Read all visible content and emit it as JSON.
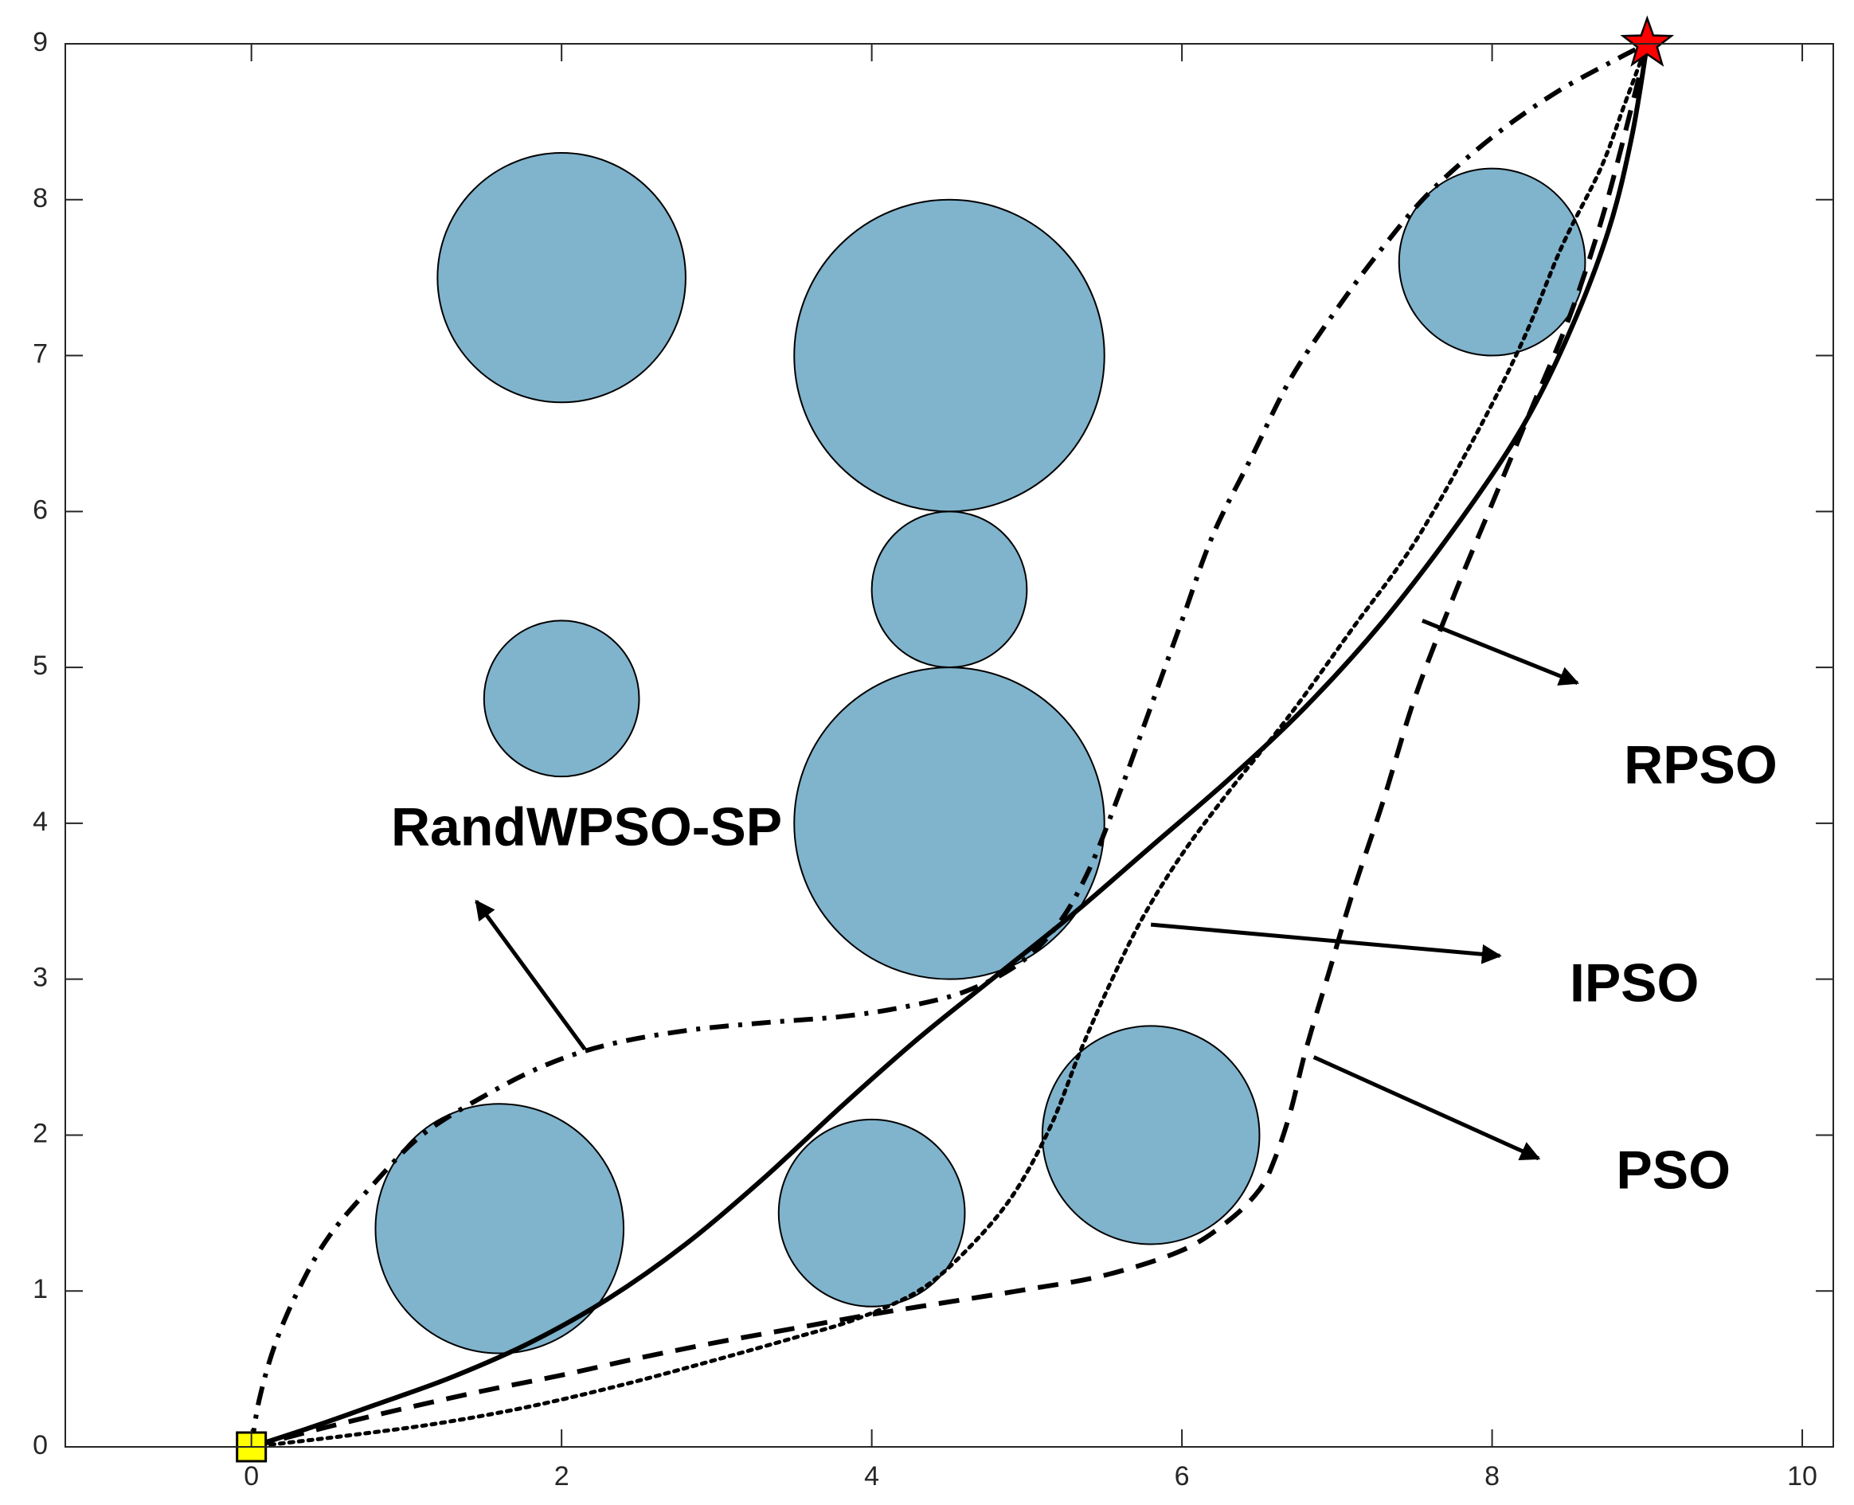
{
  "chart_data": {
    "type": "scatter",
    "title": "",
    "xlabel": "",
    "ylabel": "",
    "xlim": [
      -1.2,
      10.2
    ],
    "ylim": [
      0,
      9
    ],
    "xticks": [
      0,
      2,
      4,
      6,
      8,
      10
    ],
    "yticks": [
      0,
      1,
      2,
      3,
      4,
      5,
      6,
      7,
      8,
      9
    ],
    "grid": false,
    "colors": {
      "obstacle_fill": "#80b3cc",
      "obstacle_edge": "#000000",
      "start_marker": "#ffff00",
      "goal_marker": "#ff0000",
      "path": "#000000"
    },
    "start": {
      "x": 0,
      "y": 0,
      "marker": "square"
    },
    "goal": {
      "x": 9,
      "y": 9,
      "marker": "star"
    },
    "obstacles": [
      {
        "x": 2.0,
        "y": 7.5,
        "r": 0.8
      },
      {
        "x": 4.5,
        "y": 7.0,
        "r": 1.0
      },
      {
        "x": 4.5,
        "y": 5.5,
        "r": 0.5
      },
      {
        "x": 2.0,
        "y": 4.8,
        "r": 0.5
      },
      {
        "x": 4.5,
        "y": 4.0,
        "r": 1.0
      },
      {
        "x": 1.6,
        "y": 1.4,
        "r": 0.8
      },
      {
        "x": 4.0,
        "y": 1.5,
        "r": 0.6
      },
      {
        "x": 5.8,
        "y": 2.0,
        "r": 0.7
      },
      {
        "x": 8.0,
        "y": 7.6,
        "r": 0.6
      }
    ],
    "series": [
      {
        "name": "RandWPSO-SP",
        "style": "dashdot",
        "x": [
          0,
          0.05,
          0.15,
          0.3,
          0.5,
          0.8,
          1.1,
          1.5,
          1.9,
          2.3,
          2.8,
          3.3,
          3.8,
          4.2,
          4.6,
          4.95,
          5.2,
          5.4,
          5.6,
          5.8,
          6.0,
          6.2,
          6.45,
          6.7,
          7.0,
          7.3,
          7.6,
          8.0,
          8.4,
          8.8,
          9.0
        ],
        "y": [
          0,
          0.3,
          0.65,
          1.0,
          1.35,
          1.7,
          2.0,
          2.25,
          2.45,
          2.58,
          2.67,
          2.72,
          2.76,
          2.82,
          2.92,
          3.1,
          3.35,
          3.7,
          4.2,
          4.75,
          5.3,
          5.85,
          6.35,
          6.85,
          7.3,
          7.7,
          8.05,
          8.4,
          8.68,
          8.9,
          9.0
        ]
      },
      {
        "name": "RPSO",
        "style": "solid",
        "x": [
          0,
          0.4,
          0.8,
          1.3,
          1.8,
          2.3,
          2.8,
          3.3,
          3.8,
          4.3,
          4.8,
          5.3,
          5.8,
          6.3,
          6.8,
          7.3,
          7.8,
          8.2,
          8.5,
          8.75,
          8.9,
          9.0
        ],
        "y": [
          0,
          0.13,
          0.27,
          0.45,
          0.67,
          0.95,
          1.3,
          1.72,
          2.18,
          2.62,
          3.02,
          3.42,
          3.85,
          4.28,
          4.75,
          5.3,
          5.95,
          6.55,
          7.15,
          7.8,
          8.4,
          9.0
        ]
      },
      {
        "name": "IPSO",
        "style": "dotted",
        "x": [
          0,
          0.6,
          1.2,
          1.8,
          2.4,
          3.0,
          3.5,
          3.9,
          4.3,
          4.6,
          4.9,
          5.15,
          5.35,
          5.55,
          5.75,
          6.0,
          6.3,
          6.7,
          7.1,
          7.5,
          7.9,
          8.2,
          8.45,
          8.7,
          8.85,
          9.0
        ],
        "y": [
          0,
          0.07,
          0.15,
          0.26,
          0.4,
          0.56,
          0.7,
          0.82,
          1.0,
          1.25,
          1.6,
          2.05,
          2.55,
          3.0,
          3.4,
          3.8,
          4.2,
          4.7,
          5.25,
          5.8,
          6.5,
          7.1,
          7.7,
          8.2,
          8.6,
          9.0
        ]
      },
      {
        "name": "PSO",
        "style": "dashed",
        "x": [
          0,
          0.5,
          1.0,
          1.5,
          2.0,
          2.5,
          3.0,
          3.5,
          4.0,
          4.5,
          5.0,
          5.5,
          6.0,
          6.3,
          6.5,
          6.6,
          6.7,
          6.8,
          6.95,
          7.1,
          7.3,
          7.5,
          7.75,
          8.0,
          8.25,
          8.5,
          8.7,
          8.85,
          9.0
        ],
        "y": [
          0,
          0.13,
          0.25,
          0.36,
          0.46,
          0.57,
          0.67,
          0.76,
          0.85,
          0.93,
          1.01,
          1.1,
          1.26,
          1.45,
          1.65,
          1.85,
          2.15,
          2.55,
          3.05,
          3.55,
          4.15,
          4.8,
          5.45,
          6.05,
          6.65,
          7.25,
          7.85,
          8.4,
          9.0
        ]
      }
    ],
    "annotations": [
      {
        "text": "RandWPSO-SP",
        "text_at": [
          0.9,
          3.95
        ],
        "arrow_from": [
          2.15,
          2.55
        ],
        "arrow_to": [
          1.45,
          3.5
        ]
      },
      {
        "text": "RPSO",
        "text_at": [
          8.85,
          4.35
        ],
        "arrow_from": [
          7.55,
          5.3
        ],
        "arrow_to": [
          8.55,
          4.9
        ]
      },
      {
        "text": "IPSO",
        "text_at": [
          8.5,
          2.95
        ],
        "arrow_from": [
          5.8,
          3.35
        ],
        "arrow_to": [
          8.05,
          3.15
        ]
      },
      {
        "text": "PSO",
        "text_at": [
          8.8,
          1.75
        ],
        "arrow_from": [
          6.85,
          2.5
        ],
        "arrow_to": [
          8.3,
          1.85
        ]
      }
    ]
  }
}
